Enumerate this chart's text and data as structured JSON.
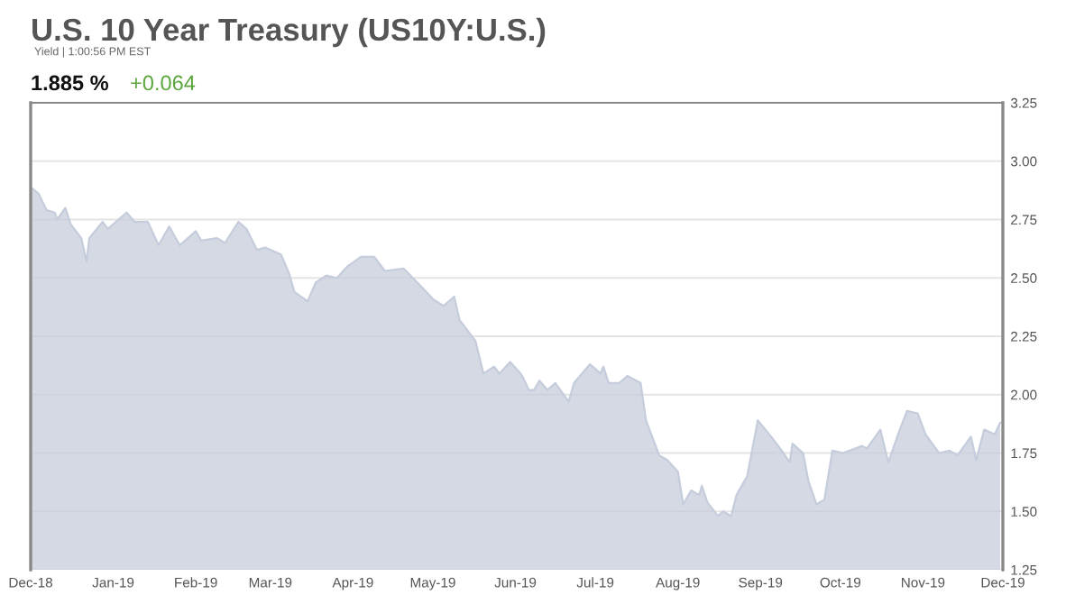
{
  "chart_data": {
    "type": "area",
    "title": "U.S. 10 Year Treasury (US10Y:U.S.)",
    "subtitle": "Yield | 1:00:56 PM EST",
    "annotations": [
      "1.885 %",
      "+0.064"
    ],
    "x": [
      "2018-12-01",
      "2018-12-04",
      "2018-12-07",
      "2018-12-10",
      "2018-12-11",
      "2018-12-14",
      "2018-12-16",
      "2018-12-20",
      "2018-12-22",
      "2018-12-23",
      "2018-12-28",
      "2018-12-30",
      "2019-01-06",
      "2019-01-09",
      "2019-01-14",
      "2019-01-18",
      "2019-01-22",
      "2019-01-26",
      "2019-02-01",
      "2019-02-03",
      "2019-02-09",
      "2019-02-12",
      "2019-02-17",
      "2019-02-20",
      "2019-02-24",
      "2019-02-27",
      "2019-03-05",
      "2019-03-08",
      "2019-03-10",
      "2019-03-15",
      "2019-03-18",
      "2019-03-22",
      "2019-03-26",
      "2019-03-30",
      "2019-04-04",
      "2019-04-09",
      "2019-04-13",
      "2019-04-20",
      "2019-04-26",
      "2019-05-01",
      "2019-05-05",
      "2019-05-09",
      "2019-05-11",
      "2019-05-17",
      "2019-05-20",
      "2019-05-24",
      "2019-05-26",
      "2019-05-30",
      "2019-06-03",
      "2019-06-04",
      "2019-06-06",
      "2019-06-08",
      "2019-06-10",
      "2019-06-13",
      "2019-06-16",
      "2019-06-21",
      "2019-06-23",
      "2019-06-29",
      "2019-07-03",
      "2019-07-04",
      "2019-07-06",
      "2019-07-10",
      "2019-07-13",
      "2019-07-18",
      "2019-07-20",
      "2019-07-25",
      "2019-07-28",
      "2019-08-01",
      "2019-08-03",
      "2019-08-06",
      "2019-08-09",
      "2019-08-10",
      "2019-08-12",
      "2019-08-16",
      "2019-08-18",
      "2019-08-21",
      "2019-08-23",
      "2019-08-27",
      "2019-08-31",
      "2019-09-05",
      "2019-09-09",
      "2019-09-12",
      "2019-09-13",
      "2019-09-17",
      "2019-09-19",
      "2019-09-22",
      "2019-09-25",
      "2019-09-28",
      "2019-10-02",
      "2019-10-09",
      "2019-10-11",
      "2019-10-16",
      "2019-10-19",
      "2019-10-23",
      "2019-10-26",
      "2019-10-30",
      "2019-11-02",
      "2019-11-07",
      "2019-11-11",
      "2019-11-14",
      "2019-11-19",
      "2019-11-21",
      "2019-11-24",
      "2019-11-28",
      "2019-11-30"
    ],
    "series": [
      {
        "color": "#c5ccdb",
        "values": [
          2.89,
          2.86,
          2.79,
          2.78,
          2.75,
          2.8,
          2.73,
          2.67,
          2.57,
          2.67,
          2.74,
          2.71,
          2.78,
          2.74,
          2.74,
          2.64,
          2.72,
          2.64,
          2.7,
          2.66,
          2.67,
          2.65,
          2.74,
          2.71,
          2.62,
          2.63,
          2.6,
          2.52,
          2.44,
          2.4,
          2.48,
          2.51,
          2.5,
          2.55,
          2.59,
          2.59,
          2.53,
          2.54,
          2.47,
          2.41,
          2.38,
          2.42,
          2.32,
          2.23,
          2.09,
          2.12,
          2.09,
          2.14,
          2.09,
          2.07,
          2.02,
          2.02,
          2.06,
          2.02,
          2.05,
          1.97,
          2.05,
          2.13,
          2.09,
          2.12,
          2.05,
          2.05,
          2.08,
          2.05,
          1.89,
          1.74,
          1.72,
          1.67,
          1.53,
          1.59,
          1.57,
          1.61,
          1.54,
          1.48,
          1.5,
          1.48,
          1.57,
          1.65,
          1.89,
          1.82,
          1.76,
          1.71,
          1.79,
          1.75,
          1.63,
          1.53,
          1.55,
          1.76,
          1.75,
          1.78,
          1.77,
          1.85,
          1.71,
          1.84,
          1.93,
          1.92,
          1.83,
          1.75,
          1.76,
          1.74,
          1.82,
          1.72,
          1.85,
          1.83,
          1.88
        ]
      }
    ],
    "xlim": [
      "2018-12-01",
      "2019-12-01"
    ],
    "xticks": [
      {
        "value": "2018-12-01",
        "label": "Dec-18"
      },
      {
        "value": "2019-01-01",
        "label": "Jan-19"
      },
      {
        "value": "2019-02-01",
        "label": "Feb-19"
      },
      {
        "value": "2019-03-01",
        "label": "Mar-19"
      },
      {
        "value": "2019-04-01",
        "label": "Apr-19"
      },
      {
        "value": "2019-05-01",
        "label": "May-19"
      },
      {
        "value": "2019-06-01",
        "label": "Jun-19"
      },
      {
        "value": "2019-07-01",
        "label": "Jul-19"
      },
      {
        "value": "2019-08-01",
        "label": "Aug-19"
      },
      {
        "value": "2019-09-01",
        "label": "Sep-19"
      },
      {
        "value": "2019-10-01",
        "label": "Oct-19"
      },
      {
        "value": "2019-11-01",
        "label": "Nov-19"
      },
      {
        "value": "2019-12-01",
        "label": "Dec-19"
      }
    ],
    "ylim": [
      1.25,
      3.25
    ],
    "yticks": [
      {
        "value": 1.25,
        "label": "1.25"
      },
      {
        "value": 1.5,
        "label": "1.50"
      },
      {
        "value": 1.75,
        "label": "1.75"
      },
      {
        "value": 2.0,
        "label": "2.00"
      },
      {
        "value": 2.25,
        "label": "2.25"
      },
      {
        "value": 2.5,
        "label": "2.50"
      },
      {
        "value": 2.75,
        "label": "2.75"
      },
      {
        "value": 3.0,
        "label": "3.00"
      },
      {
        "value": 3.25,
        "label": "3.25"
      }
    ],
    "grid": "y",
    "legend": false
  }
}
